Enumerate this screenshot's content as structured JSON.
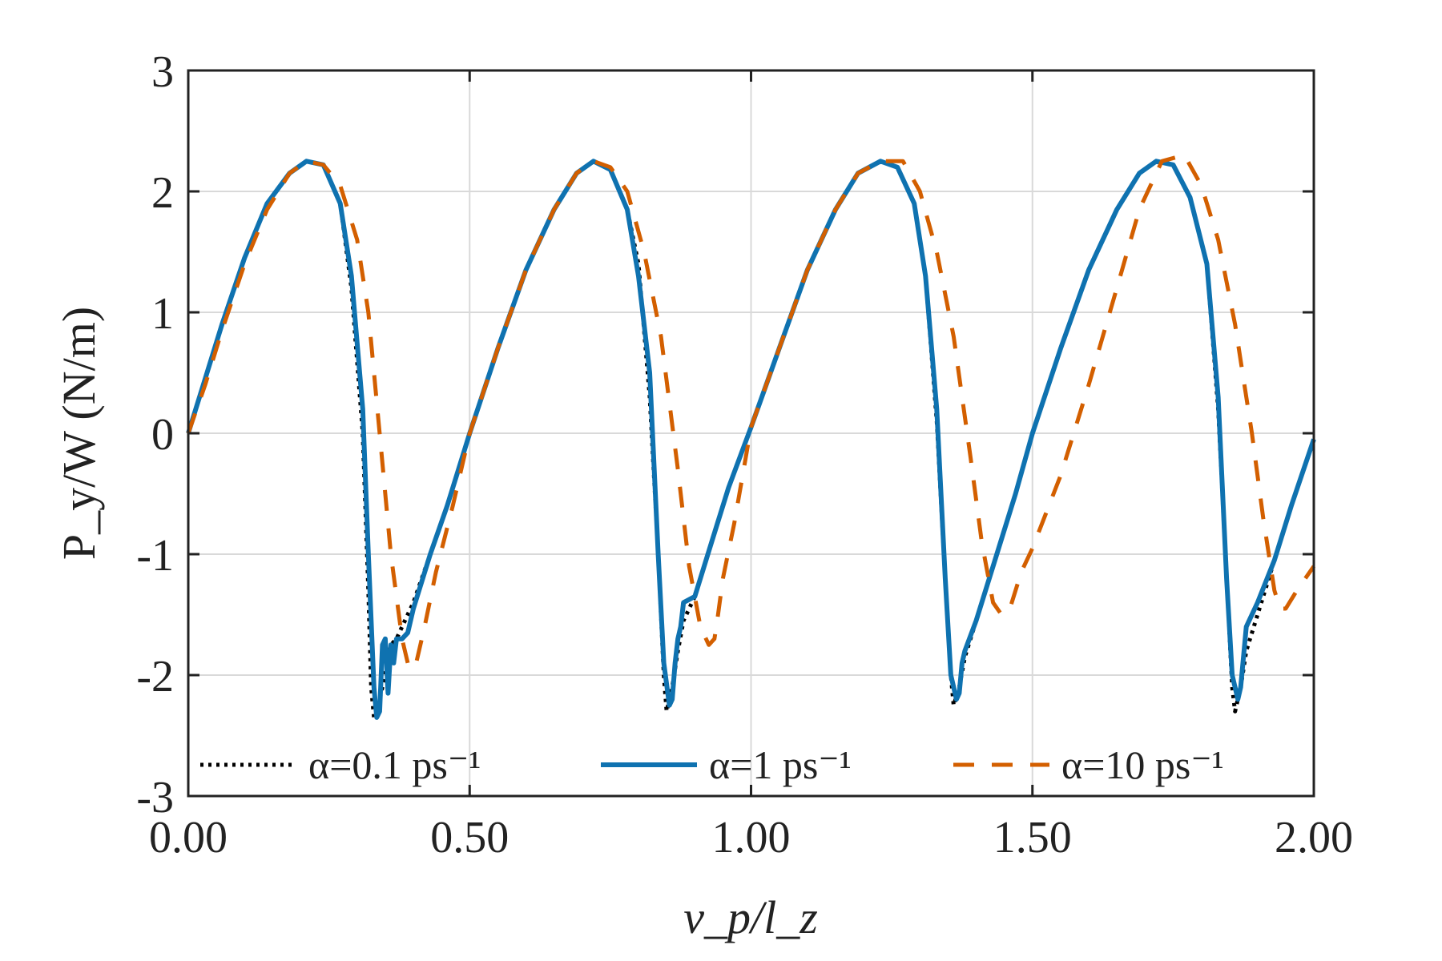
{
  "chart_data": {
    "type": "line",
    "xlabel": "v_p/l_z",
    "ylabel": "P_y/W (N/m)",
    "xlim": [
      0,
      2
    ],
    "ylim": [
      -3,
      3
    ],
    "xticks": [
      "0.00",
      "0.50",
      "1.00",
      "1.50",
      "2.00"
    ],
    "yticks": [
      "-3",
      "-2",
      "-1",
      "0",
      "1",
      "2",
      "3"
    ],
    "grid": true,
    "legend_position": "bottom",
    "series": [
      {
        "name": "α=0.1 ps⁻¹",
        "color": "#000000",
        "style": "dotted",
        "x": [
          0.0,
          0.03,
          0.06,
          0.1,
          0.14,
          0.18,
          0.21,
          0.24,
          0.27,
          0.29,
          0.31,
          0.32,
          0.325,
          0.33,
          0.335,
          0.34,
          0.35,
          0.36,
          0.37,
          0.38,
          0.4,
          0.43,
          0.46,
          0.5,
          0.55,
          0.6,
          0.65,
          0.69,
          0.72,
          0.75,
          0.78,
          0.8,
          0.82,
          0.835,
          0.845,
          0.85,
          0.86,
          0.87,
          0.88,
          0.9,
          0.93,
          0.96,
          1.0,
          1.05,
          1.1,
          1.15,
          1.19,
          1.23,
          1.26,
          1.29,
          1.31,
          1.33,
          1.345,
          1.355,
          1.36,
          1.37,
          1.38,
          1.4,
          1.43,
          1.47,
          1.5,
          1.55,
          1.6,
          1.65,
          1.69,
          1.72,
          1.75,
          1.78,
          1.81,
          1.83,
          1.845,
          1.855,
          1.86,
          1.87,
          1.88,
          1.9,
          1.93,
          1.96,
          2.0
        ],
        "y": [
          0.0,
          0.45,
          0.9,
          1.45,
          1.9,
          2.15,
          2.25,
          2.22,
          1.9,
          1.2,
          0.0,
          -1.3,
          -2.1,
          -2.35,
          -2.3,
          -2.2,
          -2.0,
          -1.75,
          -1.7,
          -1.6,
          -1.4,
          -1.0,
          -0.6,
          0.0,
          0.7,
          1.35,
          1.85,
          2.15,
          2.25,
          2.18,
          1.85,
          1.4,
          0.3,
          -1.0,
          -2.0,
          -2.3,
          -2.1,
          -1.8,
          -1.55,
          -1.35,
          -0.9,
          -0.45,
          0.05,
          0.7,
          1.35,
          1.85,
          2.15,
          2.25,
          2.2,
          1.9,
          1.3,
          0.1,
          -1.2,
          -2.0,
          -2.25,
          -2.1,
          -1.85,
          -1.55,
          -1.1,
          -0.5,
          0.0,
          0.7,
          1.35,
          1.85,
          2.15,
          2.25,
          2.22,
          1.95,
          1.4,
          0.2,
          -1.2,
          -2.1,
          -2.3,
          -2.1,
          -1.8,
          -1.5,
          -1.05,
          -0.6,
          -0.05
        ]
      },
      {
        "name": "α=1 ps⁻¹",
        "color": "#0f72b0",
        "style": "solid",
        "x": [
          0.0,
          0.03,
          0.06,
          0.1,
          0.14,
          0.18,
          0.21,
          0.24,
          0.27,
          0.29,
          0.31,
          0.32,
          0.33,
          0.335,
          0.34,
          0.345,
          0.35,
          0.355,
          0.36,
          0.365,
          0.37,
          0.38,
          0.39,
          0.4,
          0.43,
          0.46,
          0.5,
          0.55,
          0.6,
          0.65,
          0.69,
          0.72,
          0.75,
          0.78,
          0.8,
          0.82,
          0.835,
          0.845,
          0.855,
          0.86,
          0.865,
          0.87,
          0.875,
          0.88,
          0.9,
          0.93,
          0.96,
          1.0,
          1.05,
          1.1,
          1.15,
          1.19,
          1.23,
          1.26,
          1.29,
          1.31,
          1.33,
          1.345,
          1.355,
          1.365,
          1.37,
          1.375,
          1.38,
          1.4,
          1.43,
          1.47,
          1.5,
          1.55,
          1.6,
          1.65,
          1.69,
          1.72,
          1.75,
          1.78,
          1.81,
          1.83,
          1.845,
          1.855,
          1.865,
          1.87,
          1.875,
          1.88,
          1.9,
          1.93,
          1.96,
          2.0
        ],
        "y": [
          0.0,
          0.45,
          0.9,
          1.45,
          1.9,
          2.15,
          2.25,
          2.22,
          1.9,
          1.3,
          0.2,
          -1.0,
          -2.1,
          -2.35,
          -2.3,
          -1.75,
          -1.7,
          -2.15,
          -1.75,
          -1.9,
          -1.7,
          -1.7,
          -1.65,
          -1.45,
          -1.0,
          -0.6,
          0.0,
          0.7,
          1.35,
          1.85,
          2.15,
          2.25,
          2.18,
          1.85,
          1.3,
          0.5,
          -1.0,
          -1.9,
          -2.25,
          -2.2,
          -1.9,
          -1.7,
          -1.6,
          -1.4,
          -1.35,
          -0.9,
          -0.45,
          0.05,
          0.7,
          1.35,
          1.85,
          2.15,
          2.25,
          2.2,
          1.9,
          1.3,
          0.2,
          -1.2,
          -2.0,
          -2.2,
          -2.15,
          -1.9,
          -1.8,
          -1.55,
          -1.1,
          -0.5,
          0.0,
          0.7,
          1.35,
          1.85,
          2.15,
          2.25,
          2.22,
          1.95,
          1.4,
          0.3,
          -1.2,
          -2.0,
          -2.2,
          -2.1,
          -1.85,
          -1.6,
          -1.4,
          -1.05,
          -0.6,
          -0.05
        ]
      },
      {
        "name": "α=10 ps⁻¹",
        "color": "#d35f00",
        "style": "dashed",
        "x": [
          0.0,
          0.03,
          0.06,
          0.1,
          0.14,
          0.18,
          0.21,
          0.24,
          0.27,
          0.3,
          0.32,
          0.34,
          0.36,
          0.38,
          0.39,
          0.4,
          0.405,
          0.41,
          0.42,
          0.44,
          0.47,
          0.5,
          0.55,
          0.6,
          0.65,
          0.69,
          0.72,
          0.75,
          0.78,
          0.81,
          0.84,
          0.87,
          0.89,
          0.91,
          0.925,
          0.935,
          0.94,
          0.95,
          0.97,
          1.0,
          1.05,
          1.1,
          1.15,
          1.19,
          1.23,
          1.27,
          1.3,
          1.33,
          1.36,
          1.39,
          1.41,
          1.43,
          1.445,
          1.46,
          1.47,
          1.48,
          1.5,
          1.55,
          1.6,
          1.65,
          1.69,
          1.73,
          1.77,
          1.8,
          1.83,
          1.86,
          1.89,
          1.91,
          1.93,
          1.94,
          1.95,
          1.97,
          2.0
        ],
        "y": [
          0.0,
          0.4,
          0.85,
          1.4,
          1.85,
          2.15,
          2.25,
          2.22,
          2.05,
          1.6,
          1.0,
          0.0,
          -1.0,
          -1.7,
          -1.9,
          -1.95,
          -1.9,
          -1.8,
          -1.6,
          -1.15,
          -0.6,
          0.0,
          0.7,
          1.35,
          1.85,
          2.15,
          2.25,
          2.2,
          2.0,
          1.5,
          0.8,
          -0.3,
          -1.1,
          -1.6,
          -1.75,
          -1.7,
          -1.55,
          -1.2,
          -0.75,
          0.05,
          0.7,
          1.35,
          1.85,
          2.15,
          2.25,
          2.25,
          2.0,
          1.5,
          0.8,
          -0.2,
          -0.9,
          -1.4,
          -1.5,
          -1.45,
          -1.3,
          -1.15,
          -0.95,
          -0.35,
          0.4,
          1.2,
          1.85,
          2.25,
          2.3,
          2.05,
          1.6,
          0.9,
          0.0,
          -0.7,
          -1.3,
          -1.45,
          -1.45,
          -1.3,
          -1.1
        ]
      }
    ]
  }
}
